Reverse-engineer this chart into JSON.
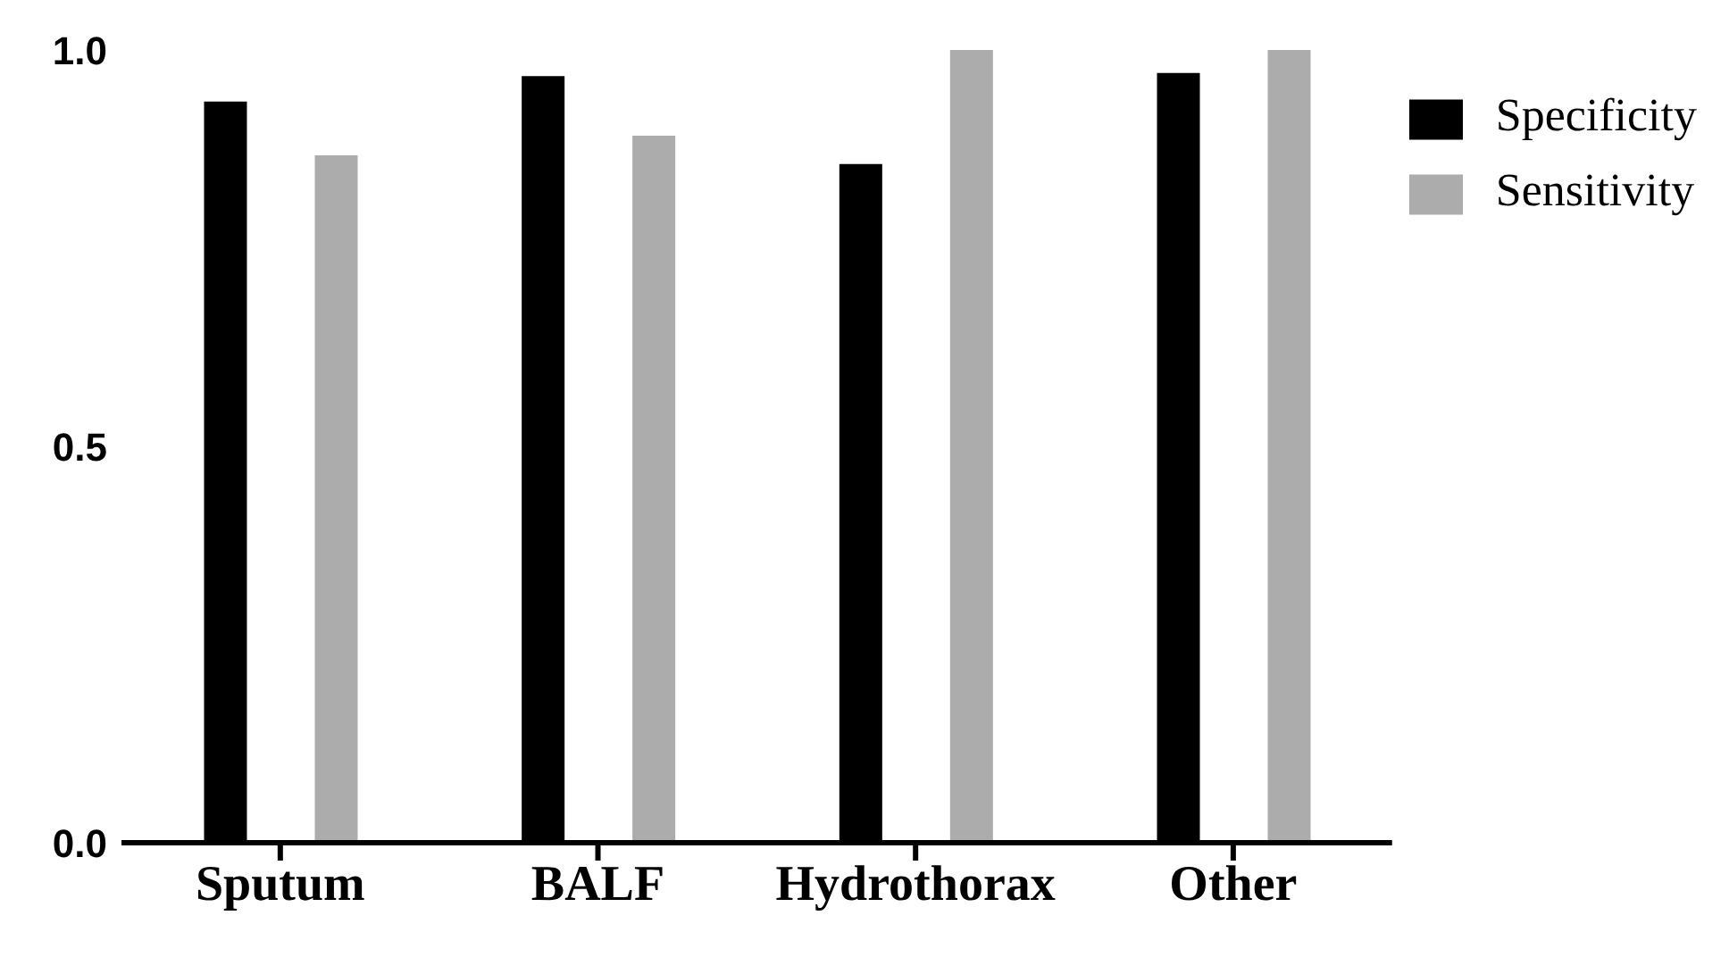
{
  "chart_data": {
    "type": "bar",
    "categories": [
      "Sputum",
      "BALF",
      "Hydrothorax",
      "Other"
    ],
    "series": [
      {
        "name": "Specificity",
        "color": "#000000",
        "values": [
          0.935,
          0.967,
          0.856,
          0.971
        ]
      },
      {
        "name": "Sensitivity",
        "color": "#acacac",
        "values": [
          0.867,
          0.892,
          1.0,
          1.0
        ]
      }
    ],
    "ylim": [
      0,
      1
    ],
    "yticks": [
      {
        "value": 0,
        "label": "0.0"
      },
      0.5,
      {
        "value": 1,
        "label": "1.0"
      }
    ],
    "grid": false,
    "legend": "top right"
  }
}
